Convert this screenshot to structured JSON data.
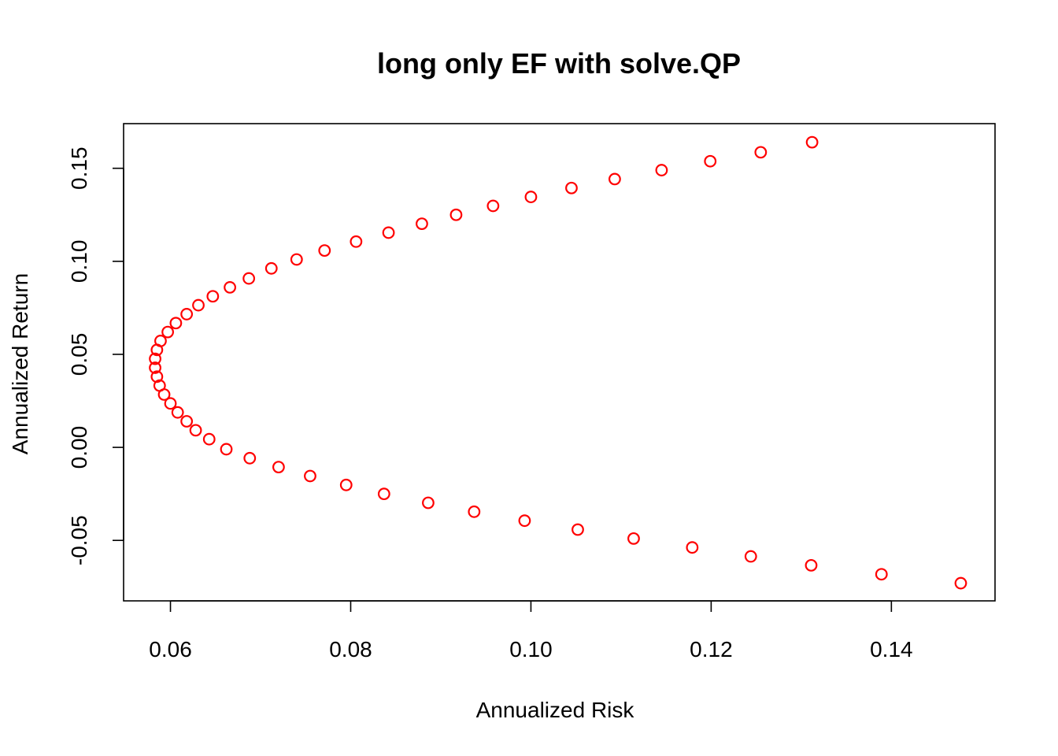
{
  "chart_data": {
    "type": "scatter",
    "title": "long only EF with solve.QP",
    "xlabel": "Annualized Risk",
    "ylabel": "Annualized Return",
    "xlim": [
      0.0548,
      0.1515
    ],
    "ylim": [
      -0.0825,
      0.174
    ],
    "xticks": [
      0.06,
      0.08,
      0.1,
      0.12,
      0.14
    ],
    "xtick_labels": [
      "0.06",
      "0.08",
      "0.10",
      "0.12",
      "0.14"
    ],
    "yticks": [
      -0.05,
      0.0,
      0.05,
      0.1,
      0.15
    ],
    "ytick_labels": [
      "-0.05",
      "0.00",
      "0.05",
      "0.10",
      "0.15"
    ],
    "grid": false,
    "marker": "open-circle",
    "color": "#ff0000",
    "series": [
      {
        "x": [
          0.1477,
          0.1389,
          0.1311,
          0.1244,
          0.1179,
          0.1114,
          0.1052,
          0.0993,
          0.0937,
          0.0886,
          0.0837,
          0.0795,
          0.0755,
          0.072,
          0.0688,
          0.0662,
          0.0643,
          0.0628,
          0.0618,
          0.0608,
          0.06,
          0.0593,
          0.0588,
          0.0585,
          0.0583,
          0.0583,
          0.0585,
          0.0589,
          0.0597,
          0.0606,
          0.0618,
          0.0631,
          0.0647,
          0.0666,
          0.0687,
          0.0712,
          0.074,
          0.0771,
          0.0806,
          0.0842,
          0.0879,
          0.0917,
          0.0958,
          0.1,
          0.1045,
          0.1093,
          0.1145,
          0.1199,
          0.1255,
          0.1312
        ],
        "y": [
          -0.073,
          -0.0682,
          -0.0634,
          -0.0586,
          -0.0538,
          -0.049,
          -0.0442,
          -0.0394,
          -0.0346,
          -0.0298,
          -0.025,
          -0.0202,
          -0.0154,
          -0.0106,
          -0.0058,
          -0.001,
          0.0044,
          0.0092,
          0.014,
          0.0188,
          0.0236,
          0.0284,
          0.0332,
          0.038,
          0.0428,
          0.0476,
          0.0524,
          0.0572,
          0.062,
          0.0668,
          0.0716,
          0.0764,
          0.0812,
          0.086,
          0.0908,
          0.0962,
          0.101,
          0.1058,
          0.1106,
          0.1154,
          0.1202,
          0.125,
          0.1298,
          0.1346,
          0.1394,
          0.1442,
          0.149,
          0.1538,
          0.1586,
          0.164
        ]
      }
    ]
  }
}
